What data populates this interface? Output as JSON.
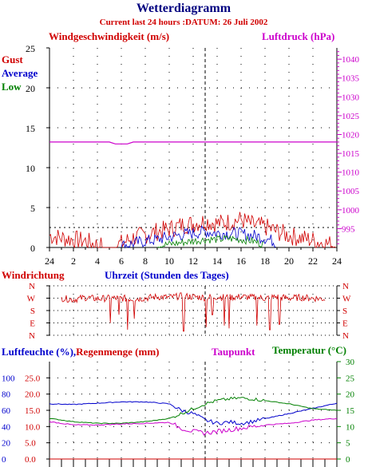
{
  "header": {
    "title": "Wetterdiagramm",
    "subtitle": "Current last 24 hours :DATUM: 26 Juli 2002"
  },
  "colors": {
    "title": "#000080",
    "gust": "#d00000",
    "average": "#0000cc",
    "low": "#008000",
    "pressure": "#cc00cc",
    "dew": "#cc00cc",
    "temperature": "#008000",
    "humidity": "#0000cc",
    "rain": "#d00000",
    "grid": "#000000"
  },
  "chart_data": [
    {
      "type": "line",
      "title": "Windgeschwindigkeit (m/s)",
      "ylabel": "Windgeschwindigkeit (m/s)",
      "y2label": "Luftdruck (hPa)",
      "xlabel": "Uhrzeit (Stunden des Tages)",
      "ylim": [
        0,
        25
      ],
      "y2lim": [
        990,
        1043
      ],
      "y_ticks": [
        0,
        5,
        10,
        15,
        20,
        25
      ],
      "y2_ticks": [
        995,
        1000,
        1005,
        1010,
        1015,
        1020,
        1025,
        1030,
        1035,
        1040
      ],
      "x_tick_labels": [
        "24",
        "2",
        "4",
        "6",
        "8",
        "10",
        "12",
        "14",
        "16",
        "18",
        "20",
        "22",
        "24"
      ],
      "grid": true,
      "legend": [
        "Gust",
        "Average",
        "Low"
      ],
      "series": [
        {
          "name": "Gust",
          "x": [
            0,
            1,
            2,
            3,
            4,
            5,
            6,
            7,
            8,
            9,
            10,
            11,
            12,
            13,
            14,
            15,
            16,
            17,
            18,
            19,
            20,
            21,
            22,
            23,
            24
          ],
          "values": [
            1.5,
            1.2,
            1.0,
            0.8,
            0.3,
            0,
            0.5,
            1.2,
            1.6,
            2.0,
            2.3,
            2.8,
            3.0,
            3.3,
            3.0,
            3.2,
            3.5,
            2.8,
            2.6,
            2.0,
            1.5,
            1.2,
            0.9,
            0.5,
            0.3
          ]
        },
        {
          "name": "Average",
          "x": [
            6,
            7,
            8,
            9,
            10,
            11,
            12,
            13,
            14,
            15,
            16,
            17,
            18,
            19
          ],
          "values": [
            0.2,
            0.5,
            0.8,
            1.0,
            1.3,
            1.6,
            1.8,
            2.0,
            1.8,
            1.8,
            1.7,
            1.5,
            1.2,
            0.6
          ]
        },
        {
          "name": "Low",
          "x": [
            9,
            10,
            11,
            12,
            13,
            14,
            15,
            16,
            17,
            18
          ],
          "values": [
            0.2,
            0.4,
            0.6,
            0.8,
            1.0,
            1.0,
            1.1,
            1.0,
            0.8,
            0.3
          ]
        },
        {
          "name": "Luftdruck",
          "x": [
            0,
            3,
            5,
            5.5,
            6,
            6.5,
            7,
            10,
            14,
            18,
            22,
            24
          ],
          "values": [
            1018,
            1018,
            1018,
            1017.5,
            1017.5,
            1017.5,
            1018,
            1018,
            1018,
            1018,
            1018,
            1018
          ]
        }
      ]
    },
    {
      "type": "line",
      "title": "Windrichtung",
      "y_tick_labels": [
        "N",
        "W",
        "S",
        "E",
        "N"
      ],
      "grid": true,
      "series": [
        {
          "name": "Windrichtung",
          "x": [
            0,
            1,
            2,
            3,
            4,
            5,
            6,
            7,
            8,
            9,
            10,
            11,
            12,
            13,
            14,
            15,
            16,
            17,
            18,
            19,
            20,
            21,
            22,
            23,
            24
          ],
          "values": [
            270,
            270,
            260,
            275,
            265,
            270,
            270,
            265,
            270,
            280,
            275,
            285,
            280,
            275,
            280,
            275,
            280,
            275,
            270,
            280,
            270,
            275,
            270,
            265,
            270
          ]
        }
      ]
    },
    {
      "type": "line",
      "title": "Luftfeuchte (%),Regenmenge (mm)",
      "ylabel": "Luftfeuchte (%),Regenmenge (mm)",
      "y2label": "Temperatur (°C)",
      "ylim": [
        0,
        25
      ],
      "ylim_humidity": [
        0,
        125
      ],
      "y2lim": [
        0,
        30
      ],
      "y_tick_labels_humidity": [
        "0",
        "20",
        "40",
        "60",
        "80",
        "100"
      ],
      "y_tick_labels_rain": [
        "0.0",
        "5.0",
        "10.0",
        "15.0",
        "20.0",
        "25.0"
      ],
      "y2_ticks": [
        0,
        5,
        10,
        15,
        20,
        25,
        30
      ],
      "legend": [
        "Taupunkt",
        "Temperatur (°C)"
      ],
      "grid": true,
      "series": [
        {
          "name": "Luftfeuchte",
          "x": [
            0,
            2,
            4,
            6,
            8,
            10,
            11,
            12,
            13,
            14,
            15,
            16,
            17,
            18,
            19,
            20,
            22,
            24
          ],
          "values": [
            85,
            84,
            86,
            88,
            88,
            85,
            75,
            70,
            60,
            55,
            57,
            55,
            58,
            62,
            66,
            70,
            78,
            86
          ]
        },
        {
          "name": "Temperatur",
          "x": [
            0,
            2,
            4,
            6,
            8,
            10,
            11,
            12,
            13,
            14,
            15,
            16,
            17,
            18,
            20,
            22,
            24
          ],
          "values": [
            12.5,
            11.5,
            11.0,
            11.0,
            11.5,
            12.5,
            14.0,
            15.5,
            17.0,
            18.0,
            18.5,
            18.8,
            18.5,
            18.0,
            17.0,
            15.5,
            15.0
          ]
        },
        {
          "name": "Taupunkt",
          "x": [
            0,
            2,
            4,
            6,
            8,
            10,
            11,
            12,
            13,
            14,
            15,
            16,
            17,
            18,
            20,
            22,
            24
          ],
          "values": [
            11.5,
            10.5,
            10.5,
            10.8,
            11.0,
            11.3,
            9.5,
            8.5,
            8.0,
            8.5,
            9.0,
            9.5,
            10.0,
            10.5,
            11.0,
            12.0,
            12.5
          ]
        },
        {
          "name": "Regenmenge",
          "x": [
            0,
            24
          ],
          "values": [
            0,
            0
          ]
        }
      ]
    }
  ]
}
